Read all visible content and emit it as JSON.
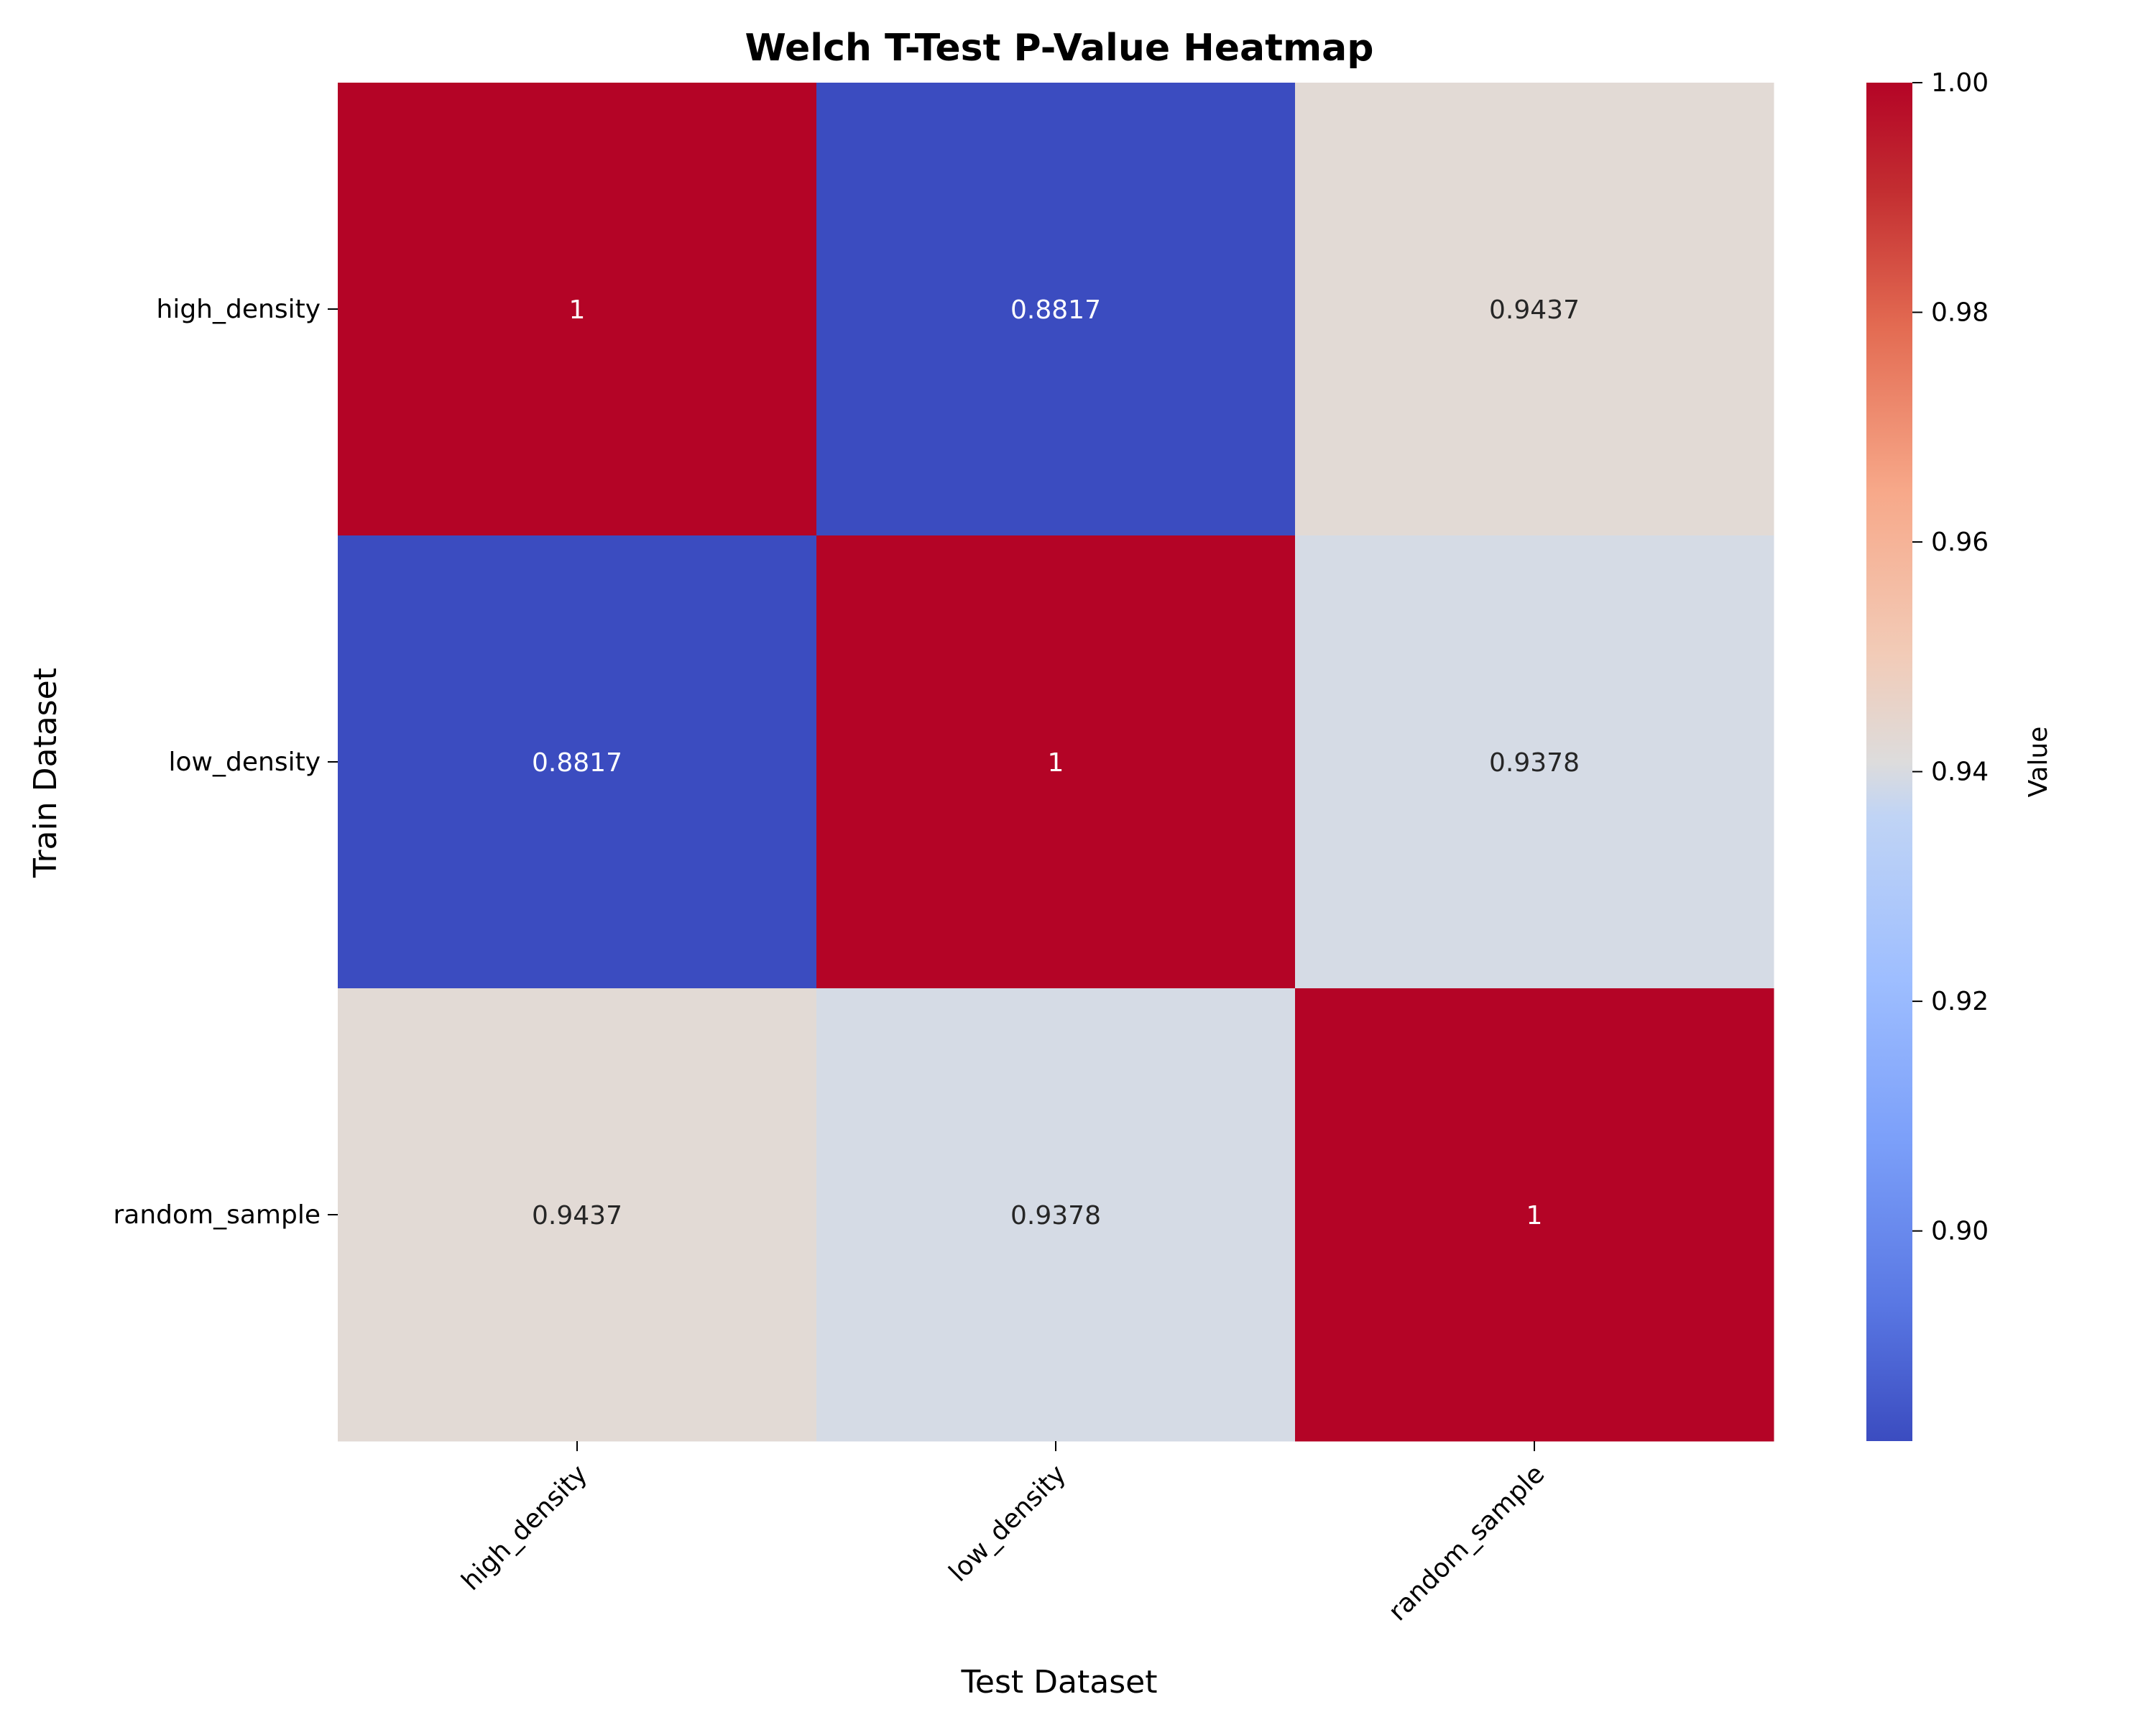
{
  "chart_data": {
    "type": "heatmap",
    "title": "Welch T-Test P-Value Heatmap",
    "xlabel": "Test Dataset",
    "ylabel": "Train Dataset",
    "x_categories": [
      "high_density",
      "low_density",
      "random_sample"
    ],
    "y_categories": [
      "high_density",
      "low_density",
      "random_sample"
    ],
    "values": [
      [
        1,
        0.8817,
        0.9437
      ],
      [
        0.8817,
        1,
        0.9378
      ],
      [
        0.9437,
        0.9378,
        1
      ]
    ],
    "cell_labels": [
      [
        "1",
        "0.8817",
        "0.9437"
      ],
      [
        "0.8817",
        "1",
        "0.9378"
      ],
      [
        "0.9437",
        "0.9378",
        "1"
      ]
    ],
    "colormap": "coolwarm",
    "colorbar": {
      "label": "Value",
      "range": [
        0.8817,
        1.0
      ],
      "ticks": [
        0.9,
        0.92,
        0.94,
        0.96,
        0.98,
        1.0
      ],
      "tick_labels": [
        "0.90",
        "0.92",
        "0.94",
        "0.96",
        "0.98",
        "1.00"
      ]
    }
  }
}
